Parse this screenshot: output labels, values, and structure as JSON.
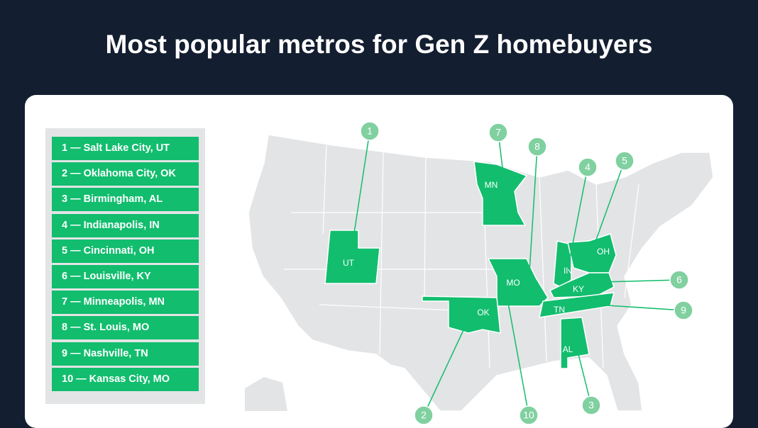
{
  "header": {
    "title": "Most popular metros for Gen Z homebuyers"
  },
  "legend": {
    "items": [
      "1 — Salt Lake City, UT",
      "2 — Oklahoma City, OK",
      "3 — Birmingham, AL",
      "4 — Indianapolis, IN",
      "5 — Cincinnati, OH",
      "6 — Louisville, KY",
      "7 — Minneapolis, MN",
      "8 — St. Louis, MO",
      "9 — Nashville, TN",
      "10 — Kansas City, MO"
    ]
  },
  "map": {
    "states": [
      "UT",
      "MN",
      "MO",
      "OK",
      "IN",
      "OH",
      "KY",
      "TN",
      "AL"
    ],
    "callouts": [
      "1",
      "2",
      "3",
      "4",
      "5",
      "6",
      "7",
      "8",
      "9",
      "10"
    ]
  }
}
